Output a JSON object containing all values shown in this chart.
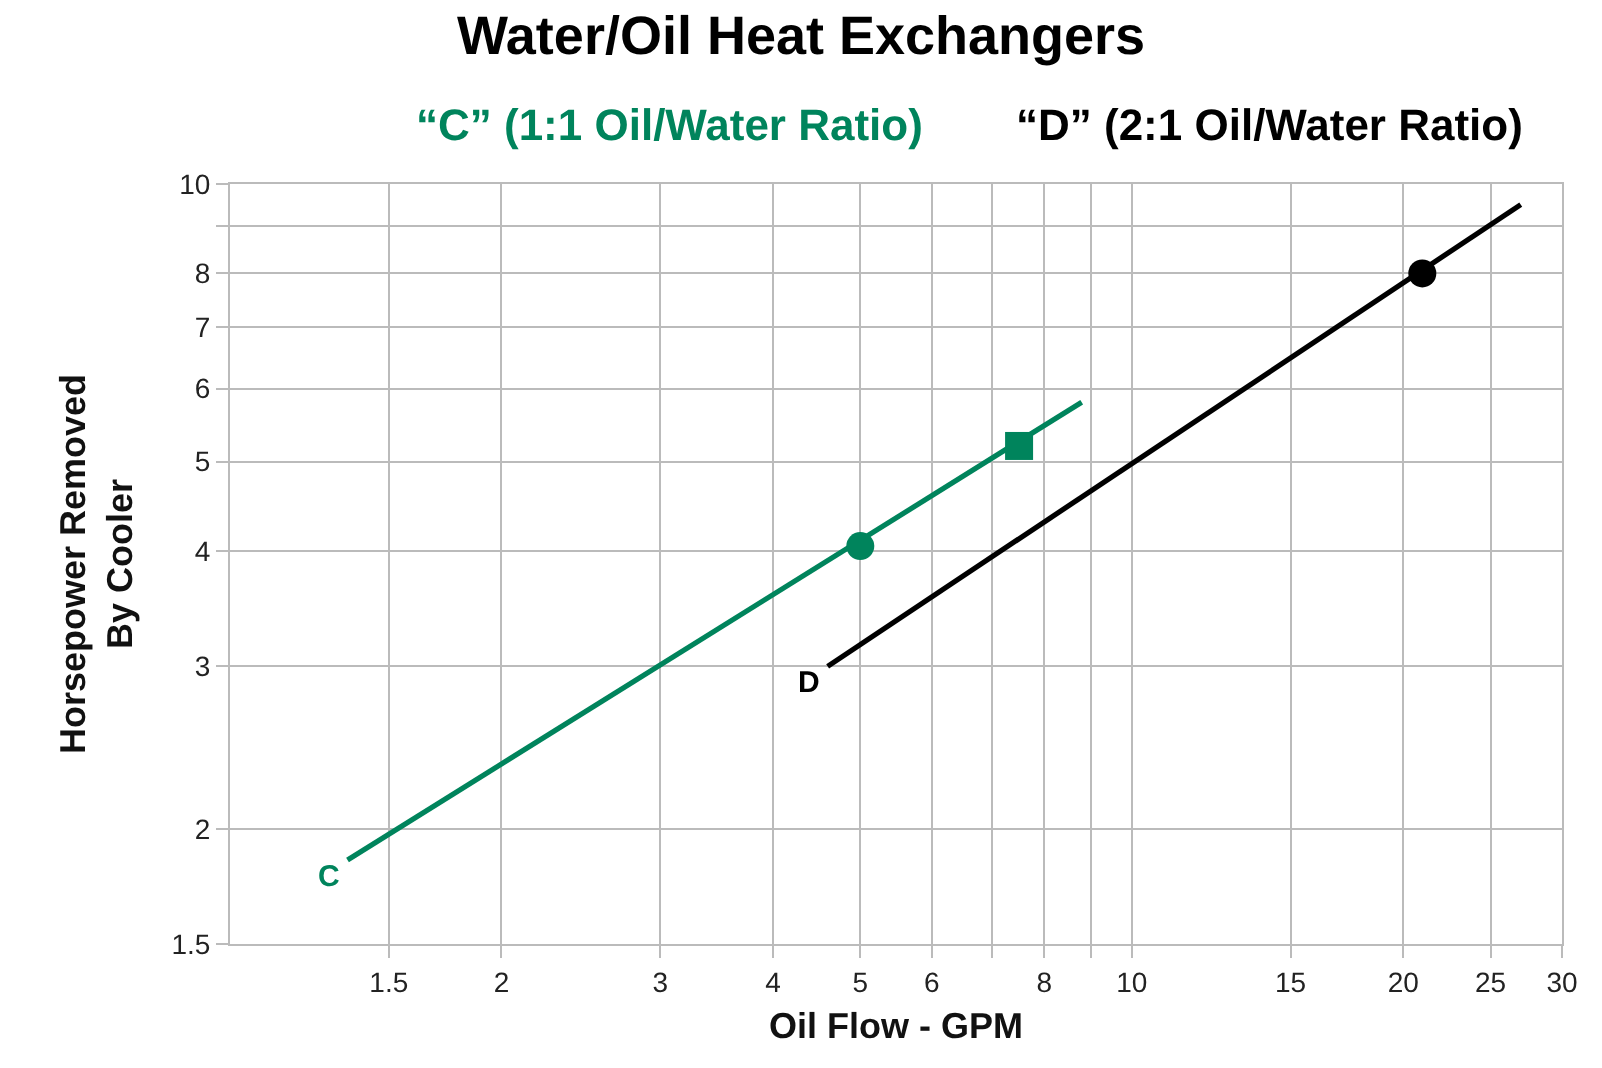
{
  "chart_data": {
    "type": "line",
    "title": "Water/Oil Heat Exchangers",
    "xlabel": "Oil Flow - GPM",
    "ylabel": "Horsepower Removed\nBy Cooler",
    "log": "xy",
    "grid": true,
    "legend": "top",
    "line_style": "solid",
    "marker": "none",
    "xlim": [
      1,
      30
    ],
    "xticks": [
      1.5,
      2,
      3,
      4,
      5,
      6,
      {
        "value": 7,
        "label": null
      },
      8,
      {
        "value": 9,
        "label": null
      },
      10,
      15,
      20,
      25,
      30
    ],
    "ylim": [
      1.5,
      10
    ],
    "yticks": [
      1.5,
      2,
      3,
      4,
      5,
      6,
      7,
      8,
      {
        "value": 9,
        "label": null
      },
      10
    ],
    "series": [
      {
        "name": "“C” (1:1 Oil/Water Ratio)",
        "color": "#00845c",
        "x": [
          1.35,
          8.8
        ],
        "values": [
          1.85,
          5.8
        ]
      },
      {
        "name": "“D” (2:1 Oil/Water Ratio)",
        "color": "#000000",
        "x": [
          4.6,
          27
        ],
        "values": [
          3.0,
          9.5
        ]
      },
      {
        "type": "scatter",
        "marker": "circle",
        "color": "#00845c",
        "x": [
          5
        ],
        "values": [
          4.05
        ]
      },
      {
        "type": "scatter",
        "marker": "square",
        "color": "#00845c",
        "x": [
          7.5
        ],
        "values": [
          5.2
        ]
      },
      {
        "type": "scatter",
        "marker": "circle",
        "color": "#000000",
        "x": [
          21
        ],
        "values": [
          8.0
        ]
      }
    ],
    "annotations": [
      {
        "text": "C",
        "x": 1.35,
        "y": 1.85
      },
      {
        "text": "D",
        "x": 4.6,
        "y": 3.0
      }
    ]
  }
}
